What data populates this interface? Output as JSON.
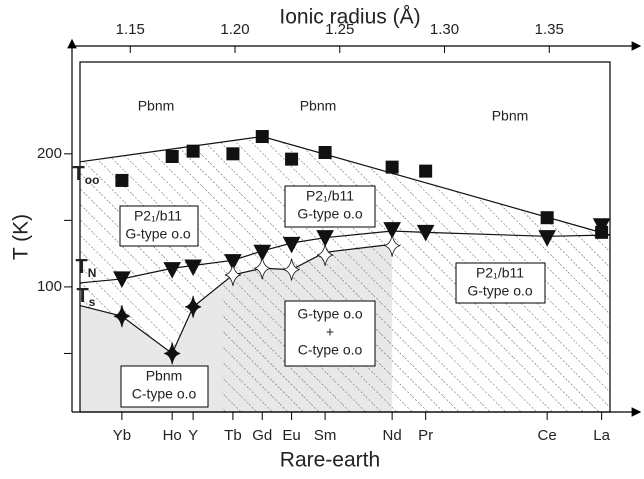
{
  "chart_data": {
    "type": "phase-diagram",
    "top_axis_label": "Ionic radius (Å)",
    "y_axis_label": "T (K)",
    "x_axis_label": "Rare-earth",
    "xlim": [
      1.126,
      1.379
    ],
    "xticks": [
      1.15,
      {
        "value": 1.2,
        "label": "1.20"
      },
      1.25,
      {
        "value": 1.3,
        "label": "1.30"
      },
      1.35
    ],
    "ylim": [
      6,
      269
    ],
    "yticks": [
      100,
      200
    ],
    "yticks_minor": [
      50,
      150
    ],
    "x_categories": [
      "Yb",
      "Ho",
      "Y",
      "Tb",
      "Gd",
      "Eu",
      "Sm",
      "Nd",
      "Pr",
      "Ce",
      "La"
    ],
    "x_category_positions": [
      1.146,
      1.17,
      1.18,
      1.199,
      1.213,
      1.227,
      1.243,
      1.275,
      1.291,
      1.349,
      1.375
    ],
    "series": [
      {
        "label": "T",
        "subscript": "oo",
        "marker": "square",
        "color": "#111111",
        "x": [
          1.146,
          1.17,
          1.18,
          1.199,
          1.213,
          1.227,
          1.243,
          1.275,
          1.291,
          1.349,
          1.375
        ],
        "values": [
          180,
          198,
          202,
          200,
          213,
          196,
          201,
          190,
          187,
          152,
          141
        ],
        "line_x": [
          1.126,
          1.213,
          1.379
        ],
        "line_values": [
          194,
          213,
          139
        ]
      },
      {
        "label": "T",
        "subscript": "N",
        "marker": "triangle",
        "color": "#111111",
        "x": [
          1.146,
          1.17,
          1.18,
          1.199,
          1.213,
          1.227,
          1.243,
          1.275,
          1.291,
          1.349,
          1.375
        ],
        "values": [
          106,
          113,
          115,
          119,
          126,
          132,
          137,
          143,
          141,
          137,
          146
        ],
        "line_x": [
          1.126,
          1.146,
          1.17,
          1.199,
          1.213,
          1.227,
          1.243,
          1.275,
          1.291,
          1.349,
          1.379
        ],
        "line_values": [
          103,
          106,
          114,
          120,
          127,
          133,
          137,
          142,
          141,
          138,
          139
        ]
      },
      {
        "label": "T",
        "subscript": "s",
        "marker": "star",
        "color": "#111111",
        "marker_colors": [
          "#111111",
          "#111111",
          "#111111",
          "#ffffff",
          "#ffffff",
          "#ffffff",
          "#ffffff",
          "#ffffff"
        ],
        "x": [
          1.146,
          1.17,
          1.18,
          1.199,
          1.213,
          1.227,
          1.243,
          1.275
        ],
        "values": [
          78,
          50,
          85,
          109,
          114,
          113,
          124,
          131
        ],
        "line_x": [
          1.126,
          1.146,
          1.17,
          1.18,
          1.199,
          1.213,
          1.227,
          1.243,
          1.275
        ],
        "line_values": [
          86,
          78,
          50,
          85,
          109,
          114,
          113,
          126,
          132
        ]
      }
    ],
    "annotations": [
      {
        "lines": [
          "Pbnm"
        ]
      },
      {
        "lines": [
          "Pbnm"
        ]
      },
      {
        "lines": [
          "Pbnm"
        ]
      },
      {
        "lines": [
          "P2₁/b11",
          "G-type o.o"
        ]
      },
      {
        "lines": [
          "P2₁/b11",
          "G-type o.o"
        ]
      },
      {
        "lines": [
          "P2₁/b11",
          "G-type o.o"
        ]
      },
      {
        "lines": [
          "G-type o.o",
          "+",
          "C-type o.o"
        ]
      },
      {
        "lines": [
          "Pbnm",
          "C-type o.o"
        ]
      }
    ]
  }
}
